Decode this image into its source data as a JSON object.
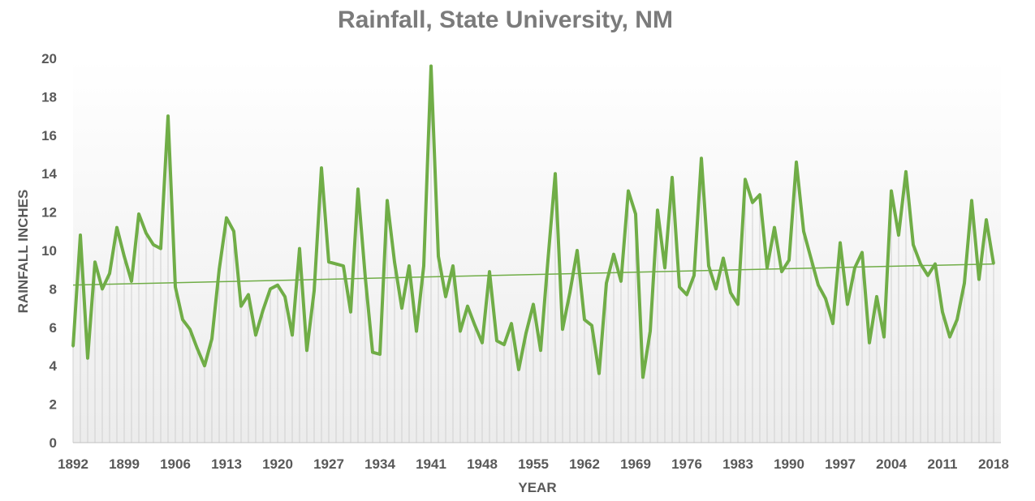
{
  "chart_data": {
    "type": "line",
    "title": "Rainfall, State University, NM",
    "xlabel": "YEAR",
    "ylabel": "RAINFALL INCHES",
    "ylim": [
      0,
      20
    ],
    "yticks": [
      0,
      2,
      4,
      6,
      8,
      10,
      12,
      14,
      16,
      18,
      20
    ],
    "xticks": [
      1892,
      1899,
      1906,
      1913,
      1920,
      1927,
      1934,
      1941,
      1948,
      1955,
      1962,
      1969,
      1976,
      1983,
      1990,
      1997,
      2004,
      2011,
      2018
    ],
    "x_start": 1892,
    "x_end": 2019,
    "grid": false,
    "legend": "none",
    "colors": {
      "line": "#70ad47",
      "trend": "#70ad47",
      "droplines": "#d0d0d0"
    },
    "series": [
      {
        "name": "Rainfall",
        "values": [
          5.0,
          10.8,
          4.4,
          9.4,
          8.0,
          8.8,
          11.2,
          9.7,
          8.4,
          11.9,
          10.9,
          10.3,
          10.1,
          17.0,
          8.1,
          6.4,
          5.9,
          4.9,
          4.0,
          5.4,
          9.0,
          11.7,
          11.0,
          7.1,
          7.7,
          5.6,
          6.9,
          8.0,
          8.2,
          7.6,
          5.6,
          10.1,
          4.8,
          7.9,
          14.3,
          9.4,
          9.3,
          9.2,
          6.8,
          13.2,
          8.6,
          4.7,
          4.6,
          12.6,
          9.4,
          7.0,
          9.2,
          5.8,
          9.2,
          19.6,
          9.7,
          7.6,
          9.2,
          5.8,
          7.1,
          6.1,
          5.2,
          8.9,
          5.3,
          5.1,
          6.2,
          3.8,
          5.7,
          7.2,
          4.8,
          9.5,
          14.0,
          5.9,
          7.8,
          10.0,
          6.4,
          6.1,
          3.6,
          8.3,
          9.8,
          8.4,
          13.1,
          11.9,
          3.4,
          5.8,
          12.1,
          9.1,
          13.8,
          8.1,
          7.7,
          8.7,
          14.8,
          9.2,
          8.0,
          9.6,
          7.8,
          7.2,
          13.7,
          12.5,
          12.9,
          9.1,
          11.2,
          8.9,
          9.5,
          14.6,
          11.0,
          9.6,
          8.2,
          7.5,
          6.2,
          10.4,
          7.2,
          9.1,
          9.9,
          5.2,
          7.6,
          5.5,
          13.1,
          10.8,
          14.1,
          10.3,
          9.3,
          8.7,
          9.3,
          6.8,
          5.5,
          6.4,
          8.3,
          12.6,
          8.5,
          11.6,
          9.3
        ]
      },
      {
        "name": "Linear trend",
        "type": "trendline",
        "values": [
          8.2,
          9.3
        ]
      }
    ]
  }
}
